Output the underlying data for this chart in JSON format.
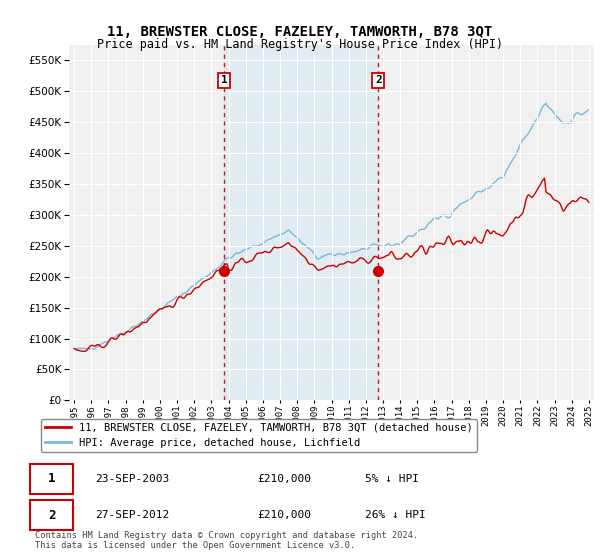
{
  "title": "11, BREWSTER CLOSE, FAZELEY, TAMWORTH, B78 3QT",
  "subtitle": "Price paid vs. HM Land Registry's House Price Index (HPI)",
  "ytick_values": [
    0,
    50000,
    100000,
    150000,
    200000,
    250000,
    300000,
    350000,
    400000,
    450000,
    500000,
    550000
  ],
  "ylim": [
    0,
    575000
  ],
  "hpi_color": "#7ab8d9",
  "hpi_fill_color": "#daeaf4",
  "price_color": "#cc0000",
  "marker1_date": 2003.73,
  "marker1_value": 210000,
  "marker2_date": 2012.73,
  "marker2_value": 210000,
  "marker_vline_color": "#cc0000",
  "legend_label1": "11, BREWSTER CLOSE, FAZELEY, TAMWORTH, B78 3QT (detached house)",
  "legend_label2": "HPI: Average price, detached house, Lichfield",
  "table_row1": [
    "1",
    "23-SEP-2003",
    "£210,000",
    "5% ↓ HPI"
  ],
  "table_row2": [
    "2",
    "27-SEP-2012",
    "£210,000",
    "26% ↓ HPI"
  ],
  "footnote": "Contains HM Land Registry data © Crown copyright and database right 2024.\nThis data is licensed under the Open Government Licence v3.0.",
  "background_color": "#ffffff",
  "plot_bg_color": "#f0f0f0"
}
